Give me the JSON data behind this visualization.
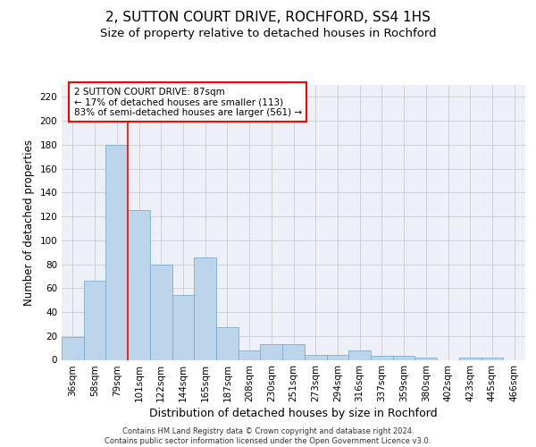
{
  "title1": "2, SUTTON COURT DRIVE, ROCHFORD, SS4 1HS",
  "title2": "Size of property relative to detached houses in Rochford",
  "xlabel": "Distribution of detached houses by size in Rochford",
  "ylabel": "Number of detached properties",
  "footer1": "Contains HM Land Registry data © Crown copyright and database right 2024.",
  "footer2": "Contains public sector information licensed under the Open Government Licence v3.0.",
  "categories": [
    "36sqm",
    "58sqm",
    "79sqm",
    "101sqm",
    "122sqm",
    "144sqm",
    "165sqm",
    "187sqm",
    "208sqm",
    "230sqm",
    "251sqm",
    "273sqm",
    "294sqm",
    "316sqm",
    "337sqm",
    "359sqm",
    "380sqm",
    "402sqm",
    "423sqm",
    "445sqm",
    "466sqm"
  ],
  "values": [
    19,
    66,
    180,
    125,
    80,
    54,
    86,
    27,
    8,
    13,
    13,
    4,
    4,
    8,
    3,
    3,
    2,
    0,
    2,
    2,
    0
  ],
  "bar_color": "#bdd5ea",
  "bar_edge_color": "#7aadd4",
  "property_line_index": 2,
  "annotation_text": "2 SUTTON COURT DRIVE: 87sqm\n← 17% of detached houses are smaller (113)\n83% of semi-detached houses are larger (561) →",
  "ylim": [
    0,
    230
  ],
  "yticks": [
    0,
    20,
    40,
    60,
    80,
    100,
    120,
    140,
    160,
    180,
    200,
    220
  ],
  "grid_color": "#cccccc",
  "background_color": "#eef0f8",
  "title1_fontsize": 11,
  "title2_fontsize": 9.5,
  "tick_fontsize": 7.5,
  "ylabel_fontsize": 8.5,
  "xlabel_fontsize": 9
}
